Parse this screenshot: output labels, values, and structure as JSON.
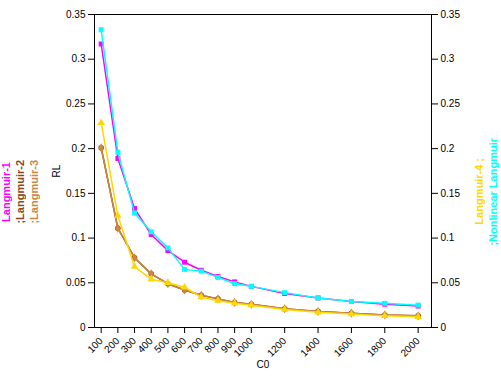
{
  "chart_data": {
    "type": "line",
    "xlabel": "C0",
    "ylabel": "RL",
    "x": [
      100,
      200,
      300,
      400,
      500,
      600,
      700,
      800,
      900,
      1000,
      1200,
      1400,
      1600,
      1800,
      2000
    ],
    "series": [
      {
        "name": "Langmuir-1",
        "color": "#FF00FF",
        "marker": "square",
        "values": [
          0.317,
          0.189,
          0.133,
          0.104,
          0.086,
          0.073,
          0.064,
          0.057,
          0.051,
          0.046,
          0.038,
          0.033,
          0.029,
          0.026,
          0.024
        ]
      },
      {
        "name": ";Langmuir-2",
        "color": "#8B4513",
        "marker": "circle",
        "values": [
          0.201,
          0.111,
          0.078,
          0.06,
          0.049,
          0.042,
          0.036,
          0.032,
          0.028,
          0.026,
          0.021,
          0.018,
          0.016,
          0.014,
          0.013
        ]
      },
      {
        "name": ";Langmuir-3",
        "color": "#CD853F",
        "marker": "diamond",
        "values": [
          0.201,
          0.111,
          0.078,
          0.06,
          0.049,
          0.042,
          0.036,
          0.032,
          0.028,
          0.026,
          0.021,
          0.018,
          0.016,
          0.014,
          0.013
        ]
      },
      {
        "name": "Langmuir-4 ;",
        "color": "#FFD700",
        "marker": "triangle",
        "values": [
          0.229,
          0.125,
          0.068,
          0.054,
          0.05,
          0.045,
          0.034,
          0.03,
          0.027,
          0.025,
          0.02,
          0.017,
          0.015,
          0.013,
          0.012
        ]
      },
      {
        "name": ";Nonlinear Langmuir",
        "color": "#00FFFF",
        "marker": "square",
        "values": [
          0.333,
          0.196,
          0.128,
          0.107,
          0.089,
          0.065,
          0.063,
          0.056,
          0.049,
          0.046,
          0.039,
          0.033,
          0.029,
          0.027,
          0.025
        ]
      }
    ],
    "xlim": [
      60,
      2080
    ],
    "xticks": [
      100,
      200,
      300,
      400,
      500,
      600,
      700,
      800,
      900,
      1000,
      1200,
      1400,
      1600,
      1800,
      2000
    ],
    "ylim": [
      0,
      0.35
    ],
    "yticks": [
      0,
      0.05,
      0.1,
      0.15,
      0.2,
      0.25,
      0.3,
      0.35
    ],
    "y2lim": [
      0,
      0.35
    ],
    "y2ticks": [
      0,
      0.05,
      0.1,
      0.15,
      0.2,
      0.25,
      0.3,
      0.35
    ]
  }
}
